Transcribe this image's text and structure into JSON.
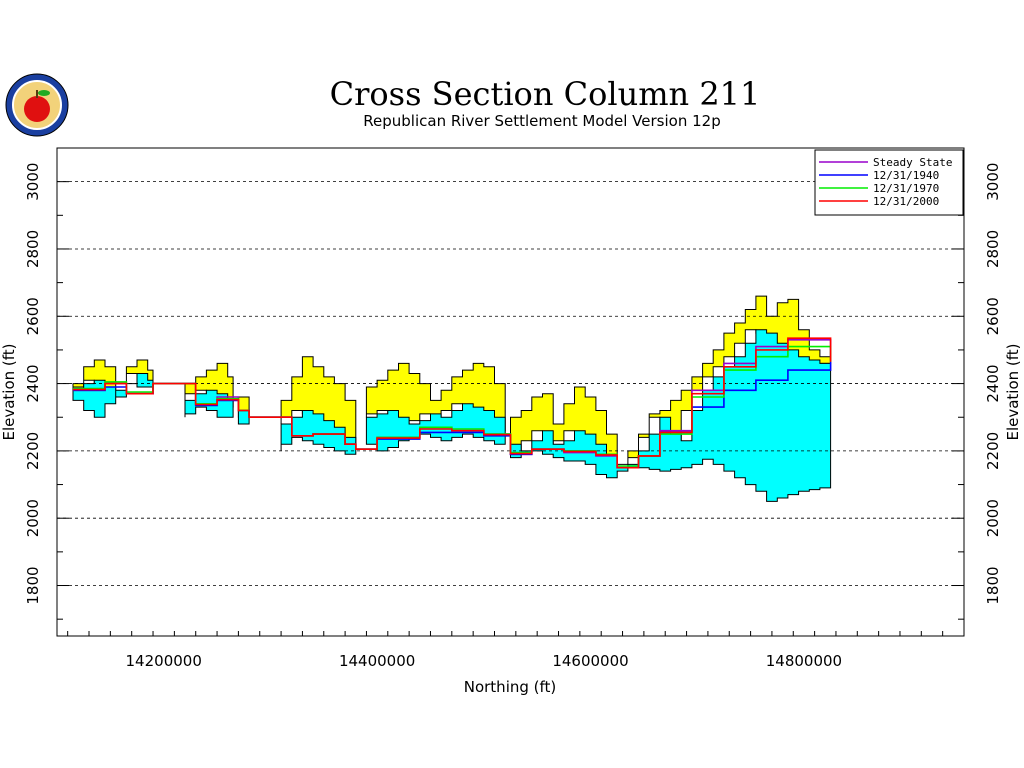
{
  "chart_data": {
    "type": "area",
    "title": "Cross Section Column 211",
    "subtitle": "Republican River Settlement Model Version 12p",
    "xlabel": "Northing (ft)",
    "ylabel": "Elevation (ft)",
    "xlim": [
      14100000,
      14950000
    ],
    "ylim": [
      1650,
      3100
    ],
    "x_ticks": [
      14200000,
      14400000,
      14600000,
      14800000
    ],
    "y_ticks": [
      1800,
      2000,
      2200,
      2400,
      2600,
      2800,
      3000
    ],
    "grid": "horizontal-dashed",
    "legend_position": "top-right",
    "colors": {
      "upper_layer": "#ffff00",
      "lower_layer": "#00ffff",
      "steady_state": "#9900cc",
      "d1940": "#0000ff",
      "d1970": "#00ee00",
      "d2000": "#ff0000"
    },
    "segments": [
      {
        "x": [
          14115000,
          14125000,
          14135000,
          14145000,
          14155000,
          14165000,
          14175000,
          14185000,
          14190000
        ],
        "top": [
          2390,
          2450,
          2470,
          2450,
          2400,
          2450,
          2470,
          2440,
          2400
        ],
        "mid": [
          2380,
          2400,
          2410,
          2390,
          2360,
          2400,
          2430,
          2410,
          2390
        ],
        "bottom": [
          2360,
          2350,
          2320,
          2300,
          2340,
          2380,
          2400,
          2390,
          2390
        ]
      },
      {
        "x": [
          14220000,
          14230000,
          14240000,
          14250000,
          14260000,
          14265000
        ],
        "top": [
          2400,
          2420,
          2440,
          2460,
          2420,
          2350
        ],
        "mid": [
          2350,
          2370,
          2380,
          2370,
          2350,
          2330
        ],
        "bottom": [
          2300,
          2310,
          2330,
          2320,
          2300,
          2300
        ]
      },
      {
        "x": [
          14270000,
          14280000
        ],
        "top": [
          2360,
          2330
        ],
        "mid": [
          2320,
          2300
        ],
        "bottom": [
          2290,
          2280
        ]
      },
      {
        "x": [
          14310000,
          14320000,
          14330000,
          14340000,
          14350000,
          14360000,
          14370000,
          14380000
        ],
        "top": [
          2350,
          2420,
          2480,
          2450,
          2420,
          2400,
          2350,
          2300
        ],
        "mid": [
          2280,
          2300,
          2320,
          2310,
          2290,
          2270,
          2240,
          2210
        ],
        "bottom": [
          2200,
          2220,
          2240,
          2230,
          2220,
          2210,
          2200,
          2190
        ]
      },
      {
        "x": [
          14390000,
          14400000,
          14410000,
          14420000,
          14430000,
          14440000,
          14450000,
          14460000,
          14470000,
          14480000,
          14490000,
          14500000,
          14510000,
          14520000
        ],
        "top": [
          2390,
          2410,
          2440,
          2460,
          2430,
          2400,
          2350,
          2380,
          2420,
          2440,
          2460,
          2450,
          2400,
          2300
        ],
        "mid": [
          2300,
          2310,
          2320,
          2300,
          2280,
          2290,
          2310,
          2300,
          2320,
          2340,
          2330,
          2320,
          2300,
          2260
        ],
        "bottom": [
          2240,
          2220,
          2200,
          2210,
          2230,
          2240,
          2250,
          2240,
          2230,
          2240,
          2250,
          2240,
          2230,
          2220
        ]
      },
      {
        "x": [
          14525000,
          14535000,
          14545000,
          14555000,
          14565000,
          14575000,
          14585000,
          14595000,
          14605000,
          14615000,
          14625000,
          14635000,
          14645000,
          14655000,
          14665000,
          14675000,
          14685000,
          14695000,
          14705000,
          14715000,
          14725000,
          14735000,
          14745000,
          14755000,
          14765000,
          14775000,
          14785000,
          14795000,
          14805000,
          14815000,
          14825000
        ],
        "top": [
          2300,
          2320,
          2360,
          2370,
          2280,
          2340,
          2390,
          2360,
          2320,
          2250,
          2160,
          2180,
          2240,
          2310,
          2320,
          2350,
          2380,
          2420,
          2460,
          2500,
          2550,
          2580,
          2620,
          2660,
          2600,
          2640,
          2650,
          2560,
          2500,
          2480,
          2490
        ],
        "mid": [
          2220,
          2200,
          2230,
          2260,
          2220,
          2230,
          2260,
          2250,
          2220,
          2190,
          2150,
          2160,
          2200,
          2250,
          2300,
          2250,
          2230,
          2320,
          2380,
          2420,
          2450,
          2480,
          2520,
          2560,
          2550,
          2520,
          2500,
          2480,
          2470,
          2460,
          2460
        ],
        "bottom": [
          2180,
          2180,
          2190,
          2200,
          2190,
          2180,
          2170,
          2170,
          2160,
          2130,
          2120,
          2140,
          2150,
          2150,
          2145,
          2140,
          2145,
          2150,
          2160,
          2175,
          2160,
          2140,
          2120,
          2100,
          2080,
          2050,
          2060,
          2070,
          2080,
          2085,
          2090
        ]
      }
    ],
    "series": [
      {
        "name": "Steady State",
        "x": [
          14115000,
          14145000,
          14165000,
          14190000,
          14230000,
          14250000,
          14270000,
          14280000,
          14320000,
          14340000,
          14370000,
          14380000,
          14400000,
          14440000,
          14470000,
          14500000,
          14525000,
          14545000,
          14575000,
          14605000,
          14625000,
          14645000,
          14665000,
          14695000,
          14725000,
          14755000,
          14785000,
          14825000
        ],
        "y": [
          2380,
          2400,
          2370,
          2400,
          2340,
          2360,
          2320,
          2300,
          2245,
          2250,
          2220,
          2205,
          2240,
          2270,
          2260,
          2250,
          2190,
          2205,
          2195,
          2185,
          2150,
          2185,
          2260,
          2380,
          2460,
          2510,
          2530,
          2465
        ]
      },
      {
        "name": "12/31/1940",
        "x": [
          14115000,
          14145000,
          14165000,
          14190000,
          14230000,
          14250000,
          14270000,
          14280000,
          14320000,
          14340000,
          14370000,
          14380000,
          14400000,
          14440000,
          14470000,
          14500000,
          14525000,
          14545000,
          14575000,
          14605000,
          14625000,
          14645000,
          14665000,
          14695000,
          14725000,
          14755000,
          14785000,
          14825000
        ],
        "y": [
          2380,
          2390,
          2370,
          2400,
          2335,
          2350,
          2320,
          2300,
          2245,
          2250,
          2220,
          2205,
          2235,
          2255,
          2255,
          2245,
          2190,
          2205,
          2200,
          2190,
          2150,
          2185,
          2255,
          2330,
          2380,
          2410,
          2440,
          2465
        ]
      },
      {
        "name": "12/31/1970",
        "x": [
          14115000,
          14145000,
          14165000,
          14190000,
          14230000,
          14250000,
          14270000,
          14280000,
          14320000,
          14340000,
          14370000,
          14380000,
          14400000,
          14440000,
          14470000,
          14500000,
          14525000,
          14545000,
          14575000,
          14605000,
          14625000,
          14645000,
          14665000,
          14695000,
          14725000,
          14755000,
          14785000,
          14825000
        ],
        "y": [
          2385,
          2405,
          2375,
          2400,
          2340,
          2355,
          2320,
          2300,
          2245,
          2250,
          2220,
          2205,
          2240,
          2270,
          2265,
          2250,
          2195,
          2205,
          2200,
          2190,
          2155,
          2185,
          2250,
          2360,
          2440,
          2480,
          2510,
          2465
        ]
      },
      {
        "name": "12/31/2000",
        "x": [
          14115000,
          14145000,
          14165000,
          14190000,
          14230000,
          14250000,
          14270000,
          14280000,
          14320000,
          14340000,
          14370000,
          14380000,
          14400000,
          14440000,
          14470000,
          14500000,
          14525000,
          14545000,
          14575000,
          14605000,
          14625000,
          14645000,
          14665000,
          14695000,
          14725000,
          14755000,
          14785000,
          14825000
        ],
        "y": [
          2382,
          2400,
          2370,
          2400,
          2338,
          2352,
          2320,
          2300,
          2245,
          2250,
          2220,
          2205,
          2238,
          2265,
          2260,
          2248,
          2192,
          2205,
          2198,
          2188,
          2150,
          2185,
          2255,
          2370,
          2450,
          2500,
          2535,
          2465
        ]
      }
    ]
  }
}
